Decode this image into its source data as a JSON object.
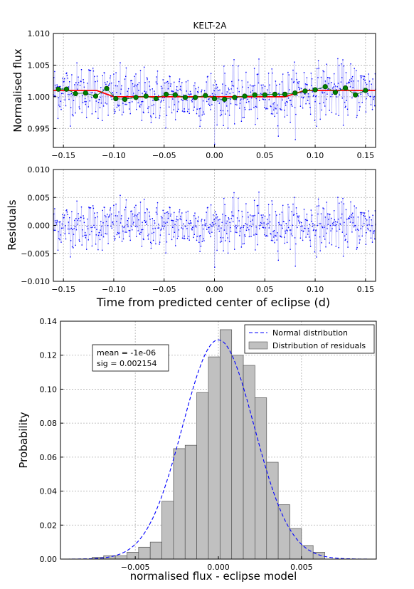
{
  "chart_data": [
    {
      "type": "scatter",
      "title": "KELT-2A",
      "xlabel": "",
      "ylabel": "Normalised flux",
      "xlim": [
        -0.16,
        0.16
      ],
      "ylim": [
        0.992,
        1.01
      ],
      "x_ticks": [
        -0.15,
        -0.1,
        -0.05,
        0.0,
        0.05,
        0.1,
        0.15
      ],
      "x_tick_labels": [
        "−0.15",
        "−0.10",
        "−0.05",
        "0.00",
        "0.05",
        "0.10",
        "0.15"
      ],
      "y_ticks": [
        0.995,
        1.0,
        1.005,
        1.01
      ],
      "y_tick_labels": [
        "0.995",
        "1.000",
        "1.005",
        "1.010"
      ],
      "grid": true,
      "raw_series": {
        "color": "#0000ff",
        "n_points": 700,
        "x_range": [
          -0.16,
          0.16
        ],
        "noise_sigma": 0.00215
      },
      "model_line": {
        "color": "#ff0000",
        "x": [
          -0.16,
          -0.117,
          -0.1,
          0.07,
          0.09,
          0.16
        ],
        "y": [
          1.001,
          1.001,
          1.0,
          1.0,
          1.001,
          1.001
        ]
      },
      "binned_points": {
        "color": "#008000",
        "x": [
          -0.155,
          -0.147,
          -0.138,
          -0.128,
          -0.118,
          -0.107,
          -0.098,
          -0.089,
          -0.078,
          -0.068,
          -0.058,
          -0.048,
          -0.039,
          -0.029,
          -0.019,
          -0.009,
          0.0,
          0.01,
          0.02,
          0.03,
          0.04,
          0.05,
          0.06,
          0.07,
          0.08,
          0.09,
          0.1,
          0.11,
          0.12,
          0.13,
          0.14,
          0.15
        ],
        "y": [
          1.0012,
          1.0012,
          1.0005,
          1.0006,
          1.0001,
          1.0013,
          0.9997,
          0.9996,
          0.9999,
          1.0001,
          0.9997,
          1.0004,
          1.0003,
          0.9999,
          0.9999,
          1.0002,
          0.9997,
          0.9996,
          0.9999,
          1.0001,
          1.0003,
          1.0003,
          1.0004,
          1.0004,
          1.0006,
          1.0009,
          1.0011,
          1.0016,
          1.0007,
          1.0014,
          1.0003,
          1.001
        ]
      }
    },
    {
      "type": "scatter",
      "title": "",
      "xlabel": "Time from predicted center of eclipse (d)",
      "ylabel": "Residuals",
      "xlim": [
        -0.16,
        0.16
      ],
      "ylim": [
        -0.01,
        0.01
      ],
      "x_ticks": [
        -0.15,
        -0.1,
        -0.05,
        0.0,
        0.05,
        0.1,
        0.15
      ],
      "x_tick_labels": [
        "−0.15",
        "−0.10",
        "−0.05",
        "0.00",
        "0.05",
        "0.10",
        "0.15"
      ],
      "y_ticks": [
        -0.01,
        -0.005,
        0.0,
        0.005,
        0.01
      ],
      "y_tick_labels": [
        "−0.010",
        "−0.005",
        "0.000",
        "0.005",
        "0.010"
      ],
      "grid": true,
      "raw_series": {
        "color": "#0000ff",
        "n_points": 700,
        "x_range": [
          -0.16,
          0.16
        ],
        "noise_sigma": 0.00215
      }
    },
    {
      "type": "bar",
      "title": "",
      "xlabel": "normalised flux - eclipse model",
      "ylabel": "Probability",
      "xlim": [
        -0.0095,
        0.0095
      ],
      "ylim": [
        0,
        0.14
      ],
      "x_ticks": [
        -0.005,
        0.0,
        0.005
      ],
      "x_tick_labels": [
        "−0.005",
        "0.000",
        "0.005"
      ],
      "y_ticks": [
        0.0,
        0.02,
        0.04,
        0.06,
        0.08,
        0.1,
        0.12,
        0.14
      ],
      "y_tick_labels": [
        "0.00",
        "0.02",
        "0.04",
        "0.06",
        "0.08",
        "0.10",
        "0.12",
        "0.14"
      ],
      "grid": true,
      "legend_position": "top-right",
      "annotation": [
        "mean = -1e-06",
        "sig = 0.002154"
      ],
      "series": [
        {
          "name": "Distribution of residuals",
          "kind": "histogram",
          "color": "#c0c0c0",
          "bin_edges": [
            -0.0076,
            -0.0069,
            -0.0062,
            -0.0055,
            -0.0048,
            -0.0041,
            -0.0034,
            -0.0027,
            -0.002,
            -0.0013,
            -0.0006,
            0.0001,
            0.0008,
            0.0015,
            0.0022,
            0.0029,
            0.0036,
            0.0043,
            0.005,
            0.0057,
            0.0064
          ],
          "values": [
            0.001,
            0.002,
            0.002,
            0.004,
            0.007,
            0.01,
            0.034,
            0.065,
            0.067,
            0.098,
            0.119,
            0.135,
            0.12,
            0.114,
            0.095,
            0.057,
            0.032,
            0.018,
            0.008,
            0.004
          ]
        },
        {
          "name": "Normal distribution",
          "kind": "line",
          "color": "#0000ff",
          "dash": true,
          "mean": -1e-06,
          "sigma": 0.002154,
          "peak": 0.129
        }
      ]
    }
  ]
}
